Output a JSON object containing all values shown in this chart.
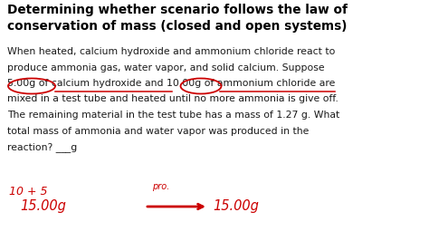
{
  "background_color": "#ffffff",
  "title_line1": "Determining whether scenario follows the law of",
  "title_line2": "conservation of mass (closed and open systems)",
  "body_text": [
    "When heated, calcium hydroxide and ammonium chloride react to",
    "produce ammonia gas, water vapor, and solid calcium. Suppose",
    "5.00g of calcium hydroxide and 10.00g of ammonium chloride are",
    "mixed in a test tube and heated until no more ammonia is give off.",
    "The remaining material in the test tube has a mass of 1.27 g. What",
    "total mass of ammonia and water vapor was produced in the",
    "reaction? ___g"
  ],
  "handwritten_line1": "10 + 5",
  "handwritten_line2": "15.00g",
  "handwritten_label": "pro.",
  "handwritten_result": "15.00g",
  "title_fontsize": 9.8,
  "body_fontsize": 7.8,
  "hand_fontsize": 9.0,
  "title_color": "#000000",
  "body_color": "#1a1a1a",
  "hand_color": "#cc0000"
}
